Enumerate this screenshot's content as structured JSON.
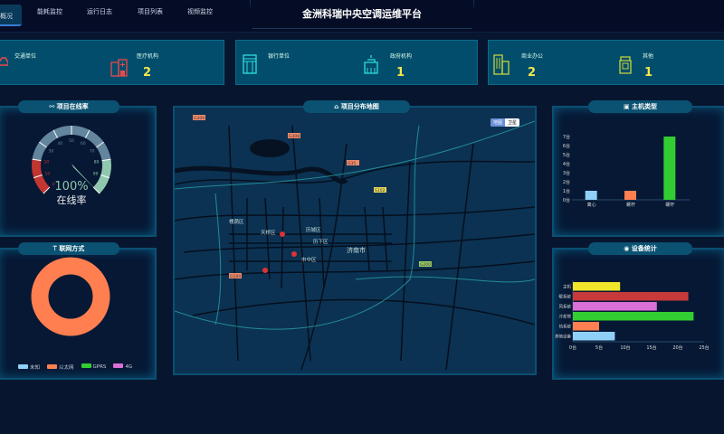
{
  "header": {
    "title": "金洲科瑞中央空调运维平台",
    "nav": [
      {
        "label": "概况",
        "active": true
      },
      {
        "label": "能耗监控"
      },
      {
        "label": "运行日志"
      },
      {
        "label": "项目列表"
      },
      {
        "label": "视频监控"
      }
    ]
  },
  "cards": [
    {
      "label": "交通单位",
      "value": null,
      "icon": "car-icon",
      "color": "#e84a4a"
    },
    {
      "label": "医疗机构",
      "value": "2",
      "icon": "hospital-icon",
      "color": "#e84a4a"
    },
    {
      "label": "银行单位",
      "value": null,
      "icon": "bank-icon",
      "color": "#2ee0e0"
    },
    {
      "label": "政府机构",
      "value": "1",
      "icon": "government-icon",
      "color": "#2ee0e0"
    },
    {
      "label": "商业办公",
      "value": "2",
      "icon": "office-icon",
      "color": "#c8d23a"
    },
    {
      "label": "其他",
      "value": "1",
      "icon": "other-building-icon",
      "color": "#c8d23a"
    }
  ],
  "online": {
    "title": "项目在线率",
    "value": 100,
    "display": "100%",
    "label": "在线率",
    "ticks": [
      "0",
      "10",
      "20",
      "30",
      "40",
      "50",
      "60",
      "70",
      "80",
      "90"
    ]
  },
  "network": {
    "title": "联网方式",
    "legend": [
      {
        "name": "未知",
        "color": "#8fd0f8",
        "value": 0
      },
      {
        "name": "以太网",
        "color": "#ff7f50",
        "value": 1
      },
      {
        "name": "GPRS",
        "color": "#32cd32",
        "value": 0
      },
      {
        "name": "4G",
        "color": "#da70d6",
        "value": 0
      }
    ]
  },
  "map": {
    "title": "项目分布地图",
    "toggle": [
      "地图",
      "卫星"
    ],
    "districts": [
      "槐荫区",
      "天桥区",
      "历城区",
      "历下区",
      "市中区",
      "济南市"
    ],
    "roads": [
      "G309",
      "G308",
      "G35",
      "G2001",
      "G104",
      "S102"
    ]
  },
  "chart_data": [
    {
      "type": "bar",
      "title": "主机类型",
      "categories": [
        "离心",
        "螺杆",
        "螺杆"
      ],
      "values": [
        1,
        1,
        7
      ],
      "colors": [
        "#8fd0f8",
        "#ff7f50",
        "#32cd32"
      ],
      "ylim": [
        0,
        7
      ],
      "yticks": [
        "0台",
        "1台",
        "2台",
        "3台",
        "4台",
        "5台",
        "6台",
        "7台"
      ]
    },
    {
      "type": "bar",
      "orientation": "horizontal",
      "title": "设备统计",
      "categories": [
        "主机",
        "暖系统",
        "风系统",
        "冷却塔",
        "热系统",
        "其他设备"
      ],
      "values": [
        9,
        22,
        16,
        23,
        5,
        8
      ],
      "colors": [
        "#f0e52a",
        "#c83a3a",
        "#da70d6",
        "#32cd32",
        "#ff7f50",
        "#8fd0f8"
      ],
      "xlim": [
        0,
        25
      ],
      "xticks": [
        "0台",
        "5台",
        "10台",
        "15台",
        "20台",
        "25台"
      ]
    }
  ]
}
